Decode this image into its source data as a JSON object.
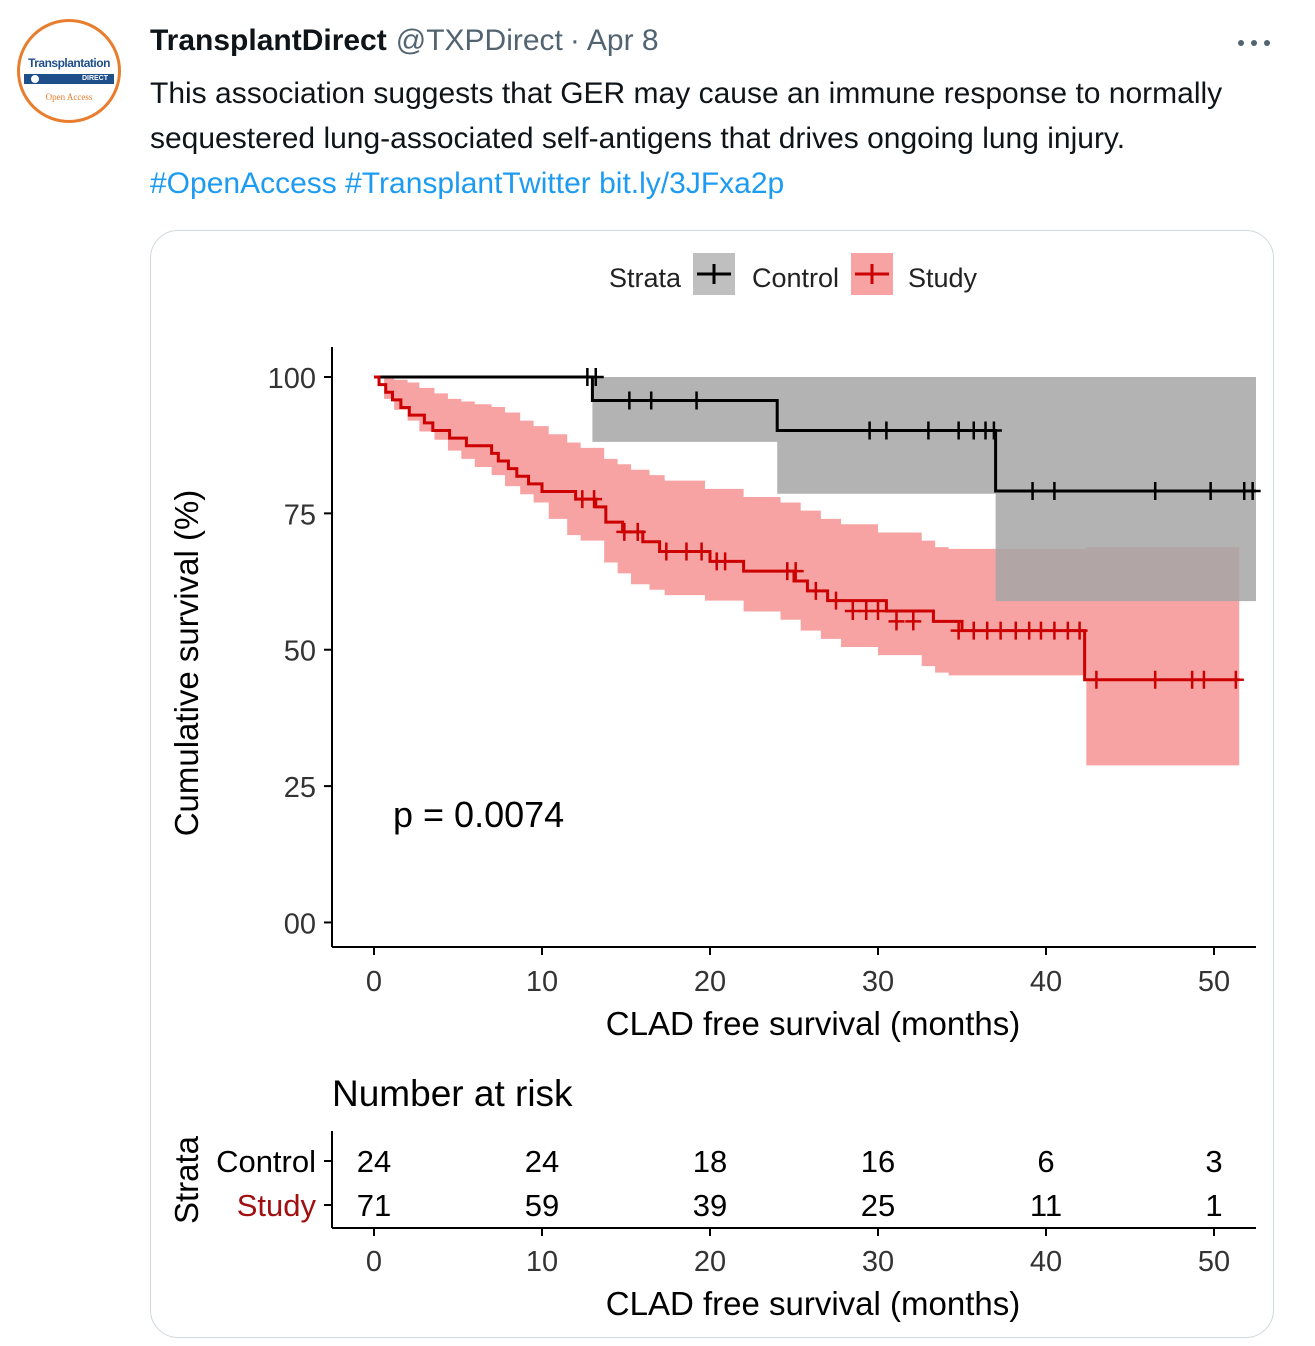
{
  "tweet": {
    "display_name": "TransplantDirect",
    "handle": "@TXPDirect",
    "separator": "·",
    "time": "Apr 8",
    "text": "This association suggests that GER may cause an immune response to normally sequestered lung-associated self-antigens that drives ongoing lung injury. ",
    "hashtags": [
      "#OpenAccess",
      "#TransplantTwitter"
    ],
    "link": "bit.ly/3JFxa2p",
    "avatar": {
      "brand": "Transplantation",
      "band": "DIRECT",
      "sub": "Open Access"
    },
    "more_icon": "more-horizontal-icon"
  },
  "chart_data": {
    "type": "line",
    "legend_title": "Strata",
    "xlabel": "CLAD free survival (months)",
    "ylabel": "Cumulative survival (%)",
    "xticks": [
      "0",
      "10",
      "20",
      "30",
      "40",
      "50"
    ],
    "yticks": [
      "00",
      "25",
      "50",
      "75",
      "100"
    ],
    "xlim": [
      -2.5,
      52.5
    ],
    "ylim": [
      -4.5,
      105.5
    ],
    "annotation": "p = 0.0074",
    "series": [
      {
        "name": "Control",
        "color": "#000000",
        "band_color": "#a6a6a6",
        "steps": [
          [
            0,
            100
          ],
          [
            13,
            95.7
          ],
          [
            24,
            90.2
          ],
          [
            37,
            79.1
          ],
          [
            52.5,
            79.1
          ]
        ],
        "ci": [
          [
            0,
            100,
            100
          ],
          [
            13,
            100,
            88.1
          ],
          [
            24,
            100,
            78.6
          ],
          [
            37,
            100,
            58.9
          ],
          [
            52.5,
            100,
            58.9
          ]
        ],
        "censored": [
          [
            12.7,
            100
          ],
          [
            13.2,
            100
          ],
          [
            15.2,
            95.7
          ],
          [
            16.5,
            95.7
          ],
          [
            19.2,
            95.7
          ],
          [
            29.5,
            90.2
          ],
          [
            30.5,
            90.2
          ],
          [
            33,
            90.2
          ],
          [
            34.8,
            90.2
          ],
          [
            35.7,
            90.2
          ],
          [
            36.4,
            90.2
          ],
          [
            36.9,
            90.2
          ],
          [
            39.2,
            79.1
          ],
          [
            40.5,
            79.1
          ],
          [
            46.5,
            79.1
          ],
          [
            49.8,
            79.1
          ],
          [
            51.8,
            79.1
          ],
          [
            52.3,
            79.1
          ]
        ]
      },
      {
        "name": "Study",
        "color": "#cc0000",
        "band_color": "#f7a3a3",
        "steps": [
          [
            0,
            100
          ],
          [
            0.3,
            98.6
          ],
          [
            0.7,
            97.2
          ],
          [
            1.1,
            95.8
          ],
          [
            1.6,
            94.4
          ],
          [
            2.1,
            93
          ],
          [
            3,
            91.6
          ],
          [
            3.5,
            90.2
          ],
          [
            4.5,
            88.8
          ],
          [
            5.5,
            87.4
          ],
          [
            7,
            86
          ],
          [
            7.4,
            84.6
          ],
          [
            8,
            83.2
          ],
          [
            8.5,
            81.8
          ],
          [
            9.2,
            80.4
          ],
          [
            10,
            79
          ],
          [
            12,
            77.6
          ],
          [
            13.2,
            76.2
          ],
          [
            13.8,
            73.4
          ],
          [
            14.8,
            71.6
          ],
          [
            16,
            69.8
          ],
          [
            17,
            68
          ],
          [
            20,
            66.2
          ],
          [
            22,
            64.4
          ],
          [
            25,
            62.6
          ],
          [
            25.8,
            60.8
          ],
          [
            27,
            59
          ],
          [
            30.5,
            57.1
          ],
          [
            33.3,
            55.2
          ],
          [
            35,
            53.5
          ],
          [
            42.3,
            44.5
          ],
          [
            51.5,
            44.5
          ]
        ],
        "ci": [
          [
            0,
            100,
            100
          ],
          [
            0.6,
            100,
            96
          ],
          [
            1.2,
            99.5,
            94
          ],
          [
            2,
            99,
            92
          ],
          [
            2.7,
            98,
            90
          ],
          [
            3.6,
            97,
            88.5
          ],
          [
            4.4,
            96,
            86.5
          ],
          [
            5.2,
            95.5,
            85
          ],
          [
            6,
            95,
            83.5
          ],
          [
            7,
            94.5,
            82
          ],
          [
            7.8,
            93.5,
            80
          ],
          [
            8.7,
            92,
            78.5
          ],
          [
            9.5,
            91,
            77
          ],
          [
            10.4,
            89.5,
            74
          ],
          [
            11.5,
            88,
            71
          ],
          [
            12.3,
            87,
            70
          ],
          [
            13.7,
            85,
            66
          ],
          [
            14.5,
            84,
            64
          ],
          [
            15.3,
            83,
            62
          ],
          [
            16.4,
            82,
            61
          ],
          [
            17.3,
            81,
            60
          ],
          [
            19.7,
            79.5,
            59
          ],
          [
            22,
            78,
            57
          ],
          [
            24.2,
            77,
            55.5
          ],
          [
            25.4,
            75.5,
            53.5
          ],
          [
            26.6,
            74,
            52
          ],
          [
            27.8,
            73,
            50.5
          ],
          [
            30,
            71.5,
            49
          ],
          [
            32.6,
            70,
            47
          ],
          [
            33.4,
            68.8,
            45.8
          ],
          [
            34.2,
            68.5,
            45.3
          ],
          [
            42.3,
            68.5,
            45.3
          ],
          [
            42.4,
            68.8,
            28.8
          ],
          [
            51.5,
            68.8,
            28.8
          ]
        ],
        "censored": [
          [
            12.4,
            77.6
          ],
          [
            13.1,
            77.6
          ],
          [
            14.9,
            71.6
          ],
          [
            15.7,
            71.6
          ],
          [
            17.4,
            68
          ],
          [
            18.6,
            68
          ],
          [
            19.5,
            68
          ],
          [
            20.4,
            66.2
          ],
          [
            20.9,
            66.2
          ],
          [
            24.6,
            64.4
          ],
          [
            25.1,
            64.4
          ],
          [
            26.3,
            60.8
          ],
          [
            27.5,
            59
          ],
          [
            28.5,
            57.1
          ],
          [
            29.3,
            57.1
          ],
          [
            30,
            57.1
          ],
          [
            31.1,
            55.2
          ],
          [
            32.1,
            55.2
          ],
          [
            34.8,
            53.5
          ],
          [
            35.7,
            53.5
          ],
          [
            36.5,
            53.5
          ],
          [
            37.3,
            53.5
          ],
          [
            38.2,
            53.5
          ],
          [
            39,
            53.5
          ],
          [
            39.7,
            53.5
          ],
          [
            40.5,
            53.5
          ],
          [
            41.3,
            53.5
          ],
          [
            42,
            53.5
          ],
          [
            43,
            44.5
          ],
          [
            46.5,
            44.5
          ],
          [
            48.7,
            44.5
          ],
          [
            49.4,
            44.5
          ],
          [
            51.3,
            44.5
          ]
        ]
      }
    ],
    "risk_table": {
      "title": "Number at risk",
      "strata_label": "Strata",
      "xlabel": "CLAD free survival (months)",
      "rows": [
        {
          "name": "Control",
          "color": "#000000",
          "values": [
            "24",
            "24",
            "18",
            "16",
            "6",
            "3"
          ]
        },
        {
          "name": "Study",
          "color": "#a01010",
          "values": [
            "71",
            "59",
            "39",
            "25",
            "11",
            "1"
          ]
        }
      ]
    }
  }
}
